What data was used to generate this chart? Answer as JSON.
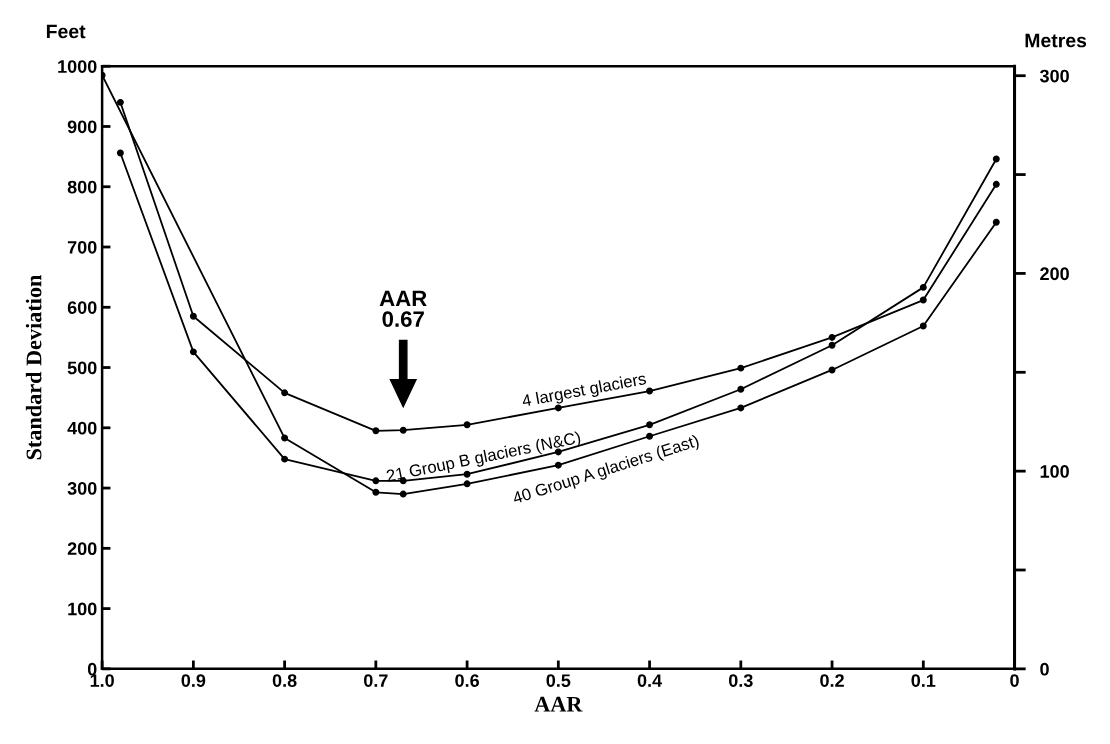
{
  "chart_data": {
    "type": "line",
    "xlabel": "AAR",
    "ylabel": "Standard Deviation",
    "y2label": "Metres",
    "annotations": [
      "Feet",
      "AAR\n0.67"
    ],
    "series": [
      {
        "name": "4 largest glaciers",
        "color": "#000000",
        "x": [
          0.98,
          0.9,
          0.8,
          0.7,
          0.67,
          0.6,
          0.5,
          0.4,
          0.3,
          0.2,
          0.1,
          0.02
        ],
        "values": [
          940,
          585,
          458,
          395,
          396,
          405,
          433,
          461,
          499,
          550,
          612,
          804
        ]
      },
      {
        "name": "21 Group B glaciers (N&C)",
        "color": "#000000",
        "x": [
          0.98,
          0.9,
          0.8,
          0.7,
          0.67,
          0.6,
          0.5,
          0.4,
          0.3,
          0.2,
          0.1,
          0.02
        ],
        "values": [
          856,
          526,
          348,
          312,
          312,
          323,
          360,
          405,
          464,
          537,
          633,
          846
        ]
      },
      {
        "name": "40 Group A glaciers (East)",
        "color": "#000000",
        "x": [
          1.0,
          0.8,
          0.7,
          0.67,
          0.6,
          0.5,
          0.4,
          0.3,
          0.2,
          0.1,
          0.02
        ],
        "values": [
          985,
          383,
          293,
          290,
          307,
          338,
          386,
          433,
          496,
          569,
          741
        ]
      }
    ],
    "marker": "circle",
    "line_style": "solid",
    "grid": false,
    "legend": false,
    "xlim": [
      1.0,
      0
    ],
    "xticks": [
      {
        "value": 1.0,
        "label": "1.0"
      },
      0.9,
      0.8,
      0.7,
      0.6,
      0.5,
      0.4,
      0.3,
      0.2,
      0.1,
      0
    ],
    "ylim": [
      0,
      1000
    ],
    "yticks": [
      0,
      100,
      200,
      300,
      400,
      500,
      600,
      700,
      800,
      900,
      1000
    ],
    "y2lim": [
      0,
      304.8
    ],
    "y2ticks": [
      0,
      {
        "value": 50,
        "label": null
      },
      100,
      {
        "value": 150,
        "label": null
      },
      200,
      {
        "value": 250,
        "label": null
      },
      300
    ]
  }
}
